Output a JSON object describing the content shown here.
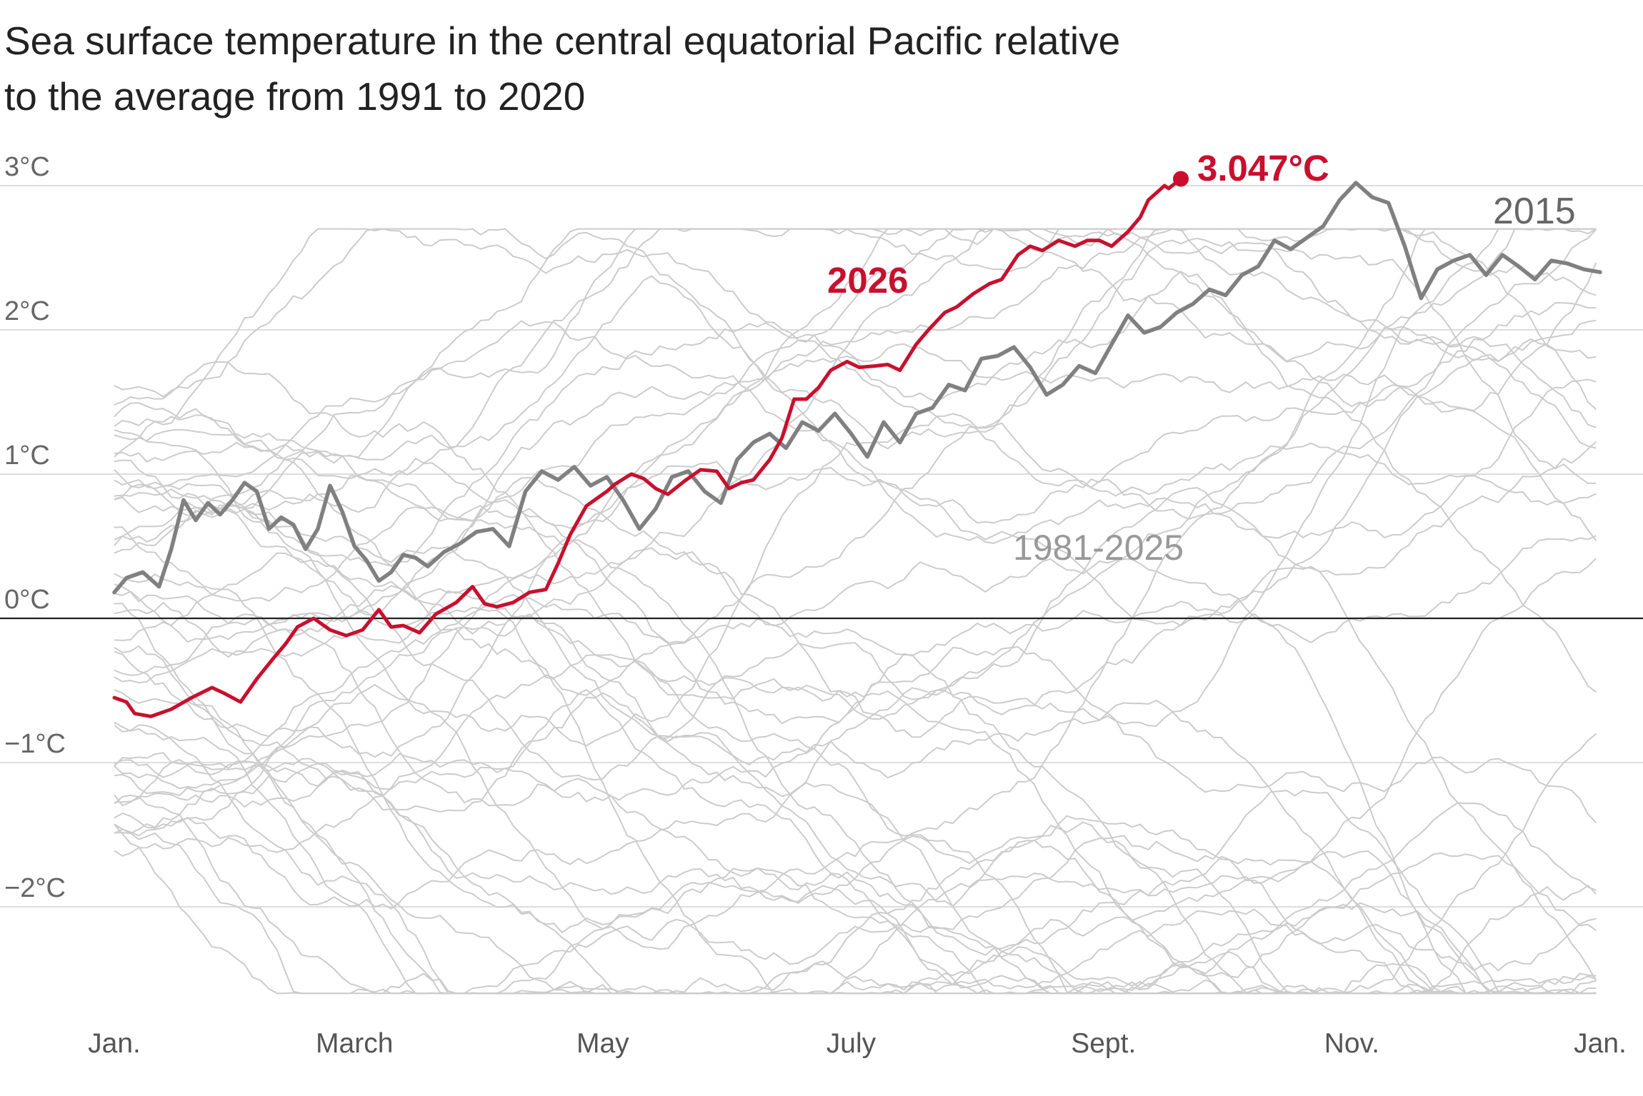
{
  "title_lines": [
    "Sea surface temperature in the central equatorial Pacific relative",
    "to the average from 1991 to 2020"
  ],
  "colors": {
    "highlight": "#c8102e",
    "year_2015": "#808080",
    "history": "#cccccc",
    "gridline": "#dddddd",
    "zero_line": "#222222"
  },
  "chart_data": {
    "type": "line",
    "title": "Sea surface temperature in the central equatorial Pacific relative to the average from 1991 to 2020",
    "xlabel": "",
    "ylabel": "",
    "x_unit": "day of year",
    "xlim": [
      1,
      366
    ],
    "ylim": [
      -2.7,
      3.1
    ],
    "grid": true,
    "y_ticks": [
      {
        "value": 3,
        "label": "3°C"
      },
      {
        "value": 2,
        "label": "2°C"
      },
      {
        "value": 1,
        "label": "1°C"
      },
      {
        "value": 0,
        "label": "0°C"
      },
      {
        "value": -1,
        "label": "−1°C"
      },
      {
        "value": -2,
        "label": "−2°C"
      }
    ],
    "x_ticks": [
      {
        "value": 1,
        "label": "Jan."
      },
      {
        "value": 60,
        "label": "March"
      },
      {
        "value": 121,
        "label": "May"
      },
      {
        "value": 182,
        "label": "July"
      },
      {
        "value": 244,
        "label": "Sept."
      },
      {
        "value": 305,
        "label": "Nov."
      },
      {
        "value": 366,
        "label": "Jan."
      }
    ],
    "highlight_series": {
      "name": "2026",
      "last_value_label": "3.047°C",
      "x": [
        1,
        4,
        6,
        10,
        15,
        20,
        25,
        28,
        32,
        36,
        40,
        43,
        46,
        50,
        54,
        58,
        62,
        66,
        69,
        72,
        76,
        80,
        85,
        89,
        92,
        95,
        99,
        103,
        107,
        110,
        113,
        117,
        122,
        124,
        128,
        131,
        134,
        137,
        141,
        145,
        149,
        152,
        155,
        158,
        162,
        165,
        168,
        171,
        174,
        177,
        181,
        184,
        188,
        191,
        194,
        198,
        201,
        205,
        208,
        212,
        216,
        219,
        223,
        226,
        229,
        233,
        237,
        240,
        243,
        246,
        250,
        253,
        255,
        257,
        259,
        260,
        263
      ],
      "values": [
        -0.55,
        -0.58,
        -0.66,
        -0.68,
        -0.63,
        -0.55,
        -0.48,
        -0.52,
        -0.58,
        -0.42,
        -0.28,
        -0.18,
        -0.06,
        0.0,
        -0.08,
        -0.12,
        -0.08,
        0.06,
        -0.06,
        -0.05,
        -0.1,
        0.03,
        0.11,
        0.22,
        0.1,
        0.08,
        0.11,
        0.18,
        0.2,
        0.38,
        0.58,
        0.78,
        0.88,
        0.93,
        1.0,
        0.97,
        0.9,
        0.86,
        0.95,
        1.03,
        1.02,
        0.9,
        0.94,
        0.96,
        1.1,
        1.25,
        1.52,
        1.52,
        1.6,
        1.72,
        1.78,
        1.74,
        1.75,
        1.76,
        1.72,
        1.9,
        2.0,
        2.12,
        2.16,
        2.25,
        2.32,
        2.35,
        2.52,
        2.58,
        2.55,
        2.62,
        2.58,
        2.62,
        2.62,
        2.58,
        2.68,
        2.78,
        2.9,
        2.95,
        3.0,
        2.98,
        3.047
      ]
    },
    "series_2015": {
      "name": "2015",
      "x": [
        1,
        4,
        8,
        12,
        15,
        18,
        21,
        24,
        27,
        30,
        33,
        36,
        39,
        42,
        45,
        48,
        51,
        54,
        57,
        60,
        63,
        66,
        69,
        72,
        75,
        78,
        82,
        86,
        90,
        94,
        98,
        102,
        106,
        110,
        114,
        118,
        122,
        126,
        130,
        134,
        138,
        142,
        146,
        150,
        154,
        158,
        162,
        166,
        170,
        174,
        178,
        182,
        186,
        190,
        194,
        198,
        202,
        206,
        210,
        214,
        218,
        222,
        226,
        230,
        234,
        238,
        242,
        246,
        250,
        254,
        258,
        262,
        266,
        270,
        274,
        278,
        282,
        286,
        290,
        294,
        298,
        302,
        306,
        310,
        314,
        318,
        322,
        326,
        330,
        334,
        338,
        342,
        346,
        350,
        354,
        358,
        362,
        366
      ],
      "values": [
        0.18,
        0.28,
        0.32,
        0.22,
        0.48,
        0.82,
        0.68,
        0.8,
        0.72,
        0.82,
        0.94,
        0.88,
        0.62,
        0.7,
        0.65,
        0.48,
        0.62,
        0.92,
        0.74,
        0.5,
        0.4,
        0.26,
        0.32,
        0.44,
        0.42,
        0.36,
        0.46,
        0.52,
        0.6,
        0.62,
        0.5,
        0.88,
        1.02,
        0.96,
        1.05,
        0.92,
        0.98,
        0.82,
        0.62,
        0.76,
        0.98,
        1.02,
        0.88,
        0.8,
        1.1,
        1.22,
        1.28,
        1.18,
        1.36,
        1.3,
        1.42,
        1.28,
        1.12,
        1.36,
        1.22,
        1.42,
        1.46,
        1.62,
        1.58,
        1.8,
        1.82,
        1.88,
        1.74,
        1.55,
        1.62,
        1.75,
        1.7,
        1.9,
        2.1,
        1.98,
        2.02,
        2.12,
        2.18,
        2.28,
        2.24,
        2.38,
        2.44,
        2.62,
        2.56,
        2.64,
        2.72,
        2.9,
        3.02,
        2.92,
        2.88,
        2.58,
        2.22,
        2.42,
        2.48,
        2.52,
        2.38,
        2.52,
        2.44,
        2.35,
        2.48,
        2.46,
        2.42,
        2.4
      ]
    },
    "history": {
      "name": "1981-2025",
      "count": 44
    }
  }
}
